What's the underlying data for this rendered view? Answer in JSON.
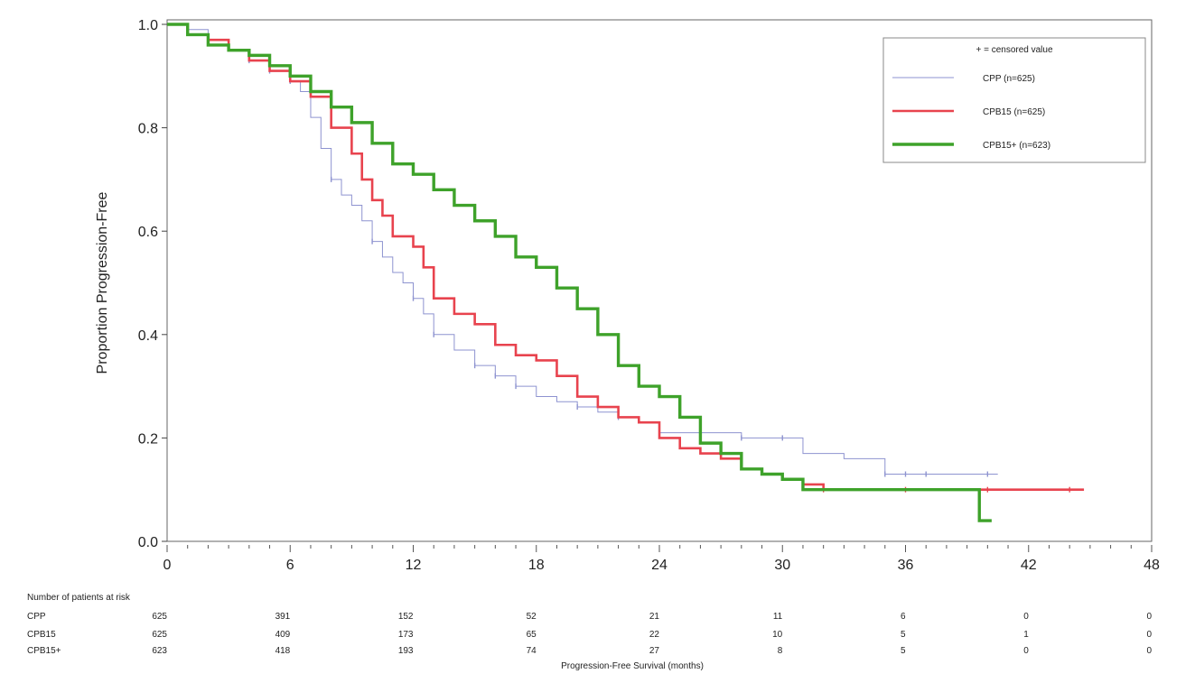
{
  "chart_data": {
    "type": "line",
    "title": "",
    "ylabel": "Proportion Progression-Free",
    "xlabel": "Progression-Free Survival (months)",
    "xlim": [
      0,
      48
    ],
    "ylim": [
      0.0,
      1.0
    ],
    "x_ticks": [
      "0",
      "6",
      "12",
      "18",
      "24",
      "30",
      "36",
      "42",
      "48"
    ],
    "y_ticks": [
      "0.0",
      "0.2",
      "0.4",
      "0.6",
      "0.8",
      "1.0"
    ],
    "legend": {
      "position": "top-right",
      "censored_label": "+ = censored value",
      "entries": [
        "CPP (n=625)",
        "CPB15 (n=625)",
        "CPB15+ (n=623)"
      ]
    },
    "series": [
      {
        "name": "CPP (n=625)",
        "color": "#8e93d0",
        "points": [
          [
            0,
            1.0
          ],
          [
            1,
            0.99
          ],
          [
            2,
            0.97
          ],
          [
            3,
            0.95
          ],
          [
            4,
            0.93
          ],
          [
            5,
            0.91
          ],
          [
            6,
            0.89
          ],
          [
            6.5,
            0.87
          ],
          [
            7,
            0.82
          ],
          [
            7.5,
            0.76
          ],
          [
            8,
            0.7
          ],
          [
            8.5,
            0.67
          ],
          [
            9,
            0.65
          ],
          [
            9.5,
            0.62
          ],
          [
            10,
            0.58
          ],
          [
            10.5,
            0.55
          ],
          [
            11,
            0.52
          ],
          [
            11.5,
            0.5
          ],
          [
            12,
            0.47
          ],
          [
            12.5,
            0.44
          ],
          [
            13,
            0.4
          ],
          [
            14,
            0.37
          ],
          [
            15,
            0.34
          ],
          [
            16,
            0.32
          ],
          [
            17,
            0.3
          ],
          [
            18,
            0.28
          ],
          [
            19,
            0.27
          ],
          [
            20,
            0.26
          ],
          [
            21,
            0.25
          ],
          [
            22,
            0.24
          ],
          [
            23,
            0.23
          ],
          [
            24,
            0.21
          ],
          [
            26,
            0.21
          ],
          [
            28,
            0.2
          ],
          [
            30,
            0.2
          ],
          [
            31,
            0.17
          ],
          [
            33,
            0.16
          ],
          [
            35,
            0.13
          ],
          [
            38,
            0.13
          ],
          [
            40.5,
            0.13
          ]
        ],
        "censored_x": [
          4,
          5,
          6,
          8,
          10,
          12,
          13,
          15,
          16,
          17,
          20,
          22,
          24,
          26,
          28,
          30,
          35,
          36,
          37,
          40
        ]
      },
      {
        "name": "CPB15 (n=625)",
        "color": "#e8434e",
        "points": [
          [
            0,
            1.0
          ],
          [
            1,
            0.98
          ],
          [
            2,
            0.97
          ],
          [
            3,
            0.95
          ],
          [
            4,
            0.93
          ],
          [
            5,
            0.91
          ],
          [
            6,
            0.89
          ],
          [
            7,
            0.86
          ],
          [
            8,
            0.8
          ],
          [
            9,
            0.75
          ],
          [
            9.5,
            0.7
          ],
          [
            10,
            0.66
          ],
          [
            10.5,
            0.63
          ],
          [
            11,
            0.59
          ],
          [
            12,
            0.57
          ],
          [
            12.5,
            0.53
          ],
          [
            13,
            0.47
          ],
          [
            14,
            0.44
          ],
          [
            15,
            0.42
          ],
          [
            16,
            0.38
          ],
          [
            17,
            0.36
          ],
          [
            18,
            0.35
          ],
          [
            19,
            0.32
          ],
          [
            20,
            0.28
          ],
          [
            21,
            0.26
          ],
          [
            22,
            0.24
          ],
          [
            23,
            0.23
          ],
          [
            24,
            0.2
          ],
          [
            25,
            0.18
          ],
          [
            26,
            0.17
          ],
          [
            27,
            0.16
          ],
          [
            28,
            0.14
          ],
          [
            29,
            0.13
          ],
          [
            30,
            0.12
          ],
          [
            31,
            0.11
          ],
          [
            32,
            0.1
          ],
          [
            36,
            0.1
          ],
          [
            40,
            0.1
          ],
          [
            44.7,
            0.1
          ]
        ],
        "censored_x": [
          32,
          36,
          40,
          44
        ]
      },
      {
        "name": "CPB15+ (n=623)",
        "color": "#3ea22a",
        "points": [
          [
            0,
            1.0
          ],
          [
            1,
            0.98
          ],
          [
            2,
            0.96
          ],
          [
            3,
            0.95
          ],
          [
            4,
            0.94
          ],
          [
            5,
            0.92
          ],
          [
            6,
            0.9
          ],
          [
            7,
            0.87
          ],
          [
            8,
            0.84
          ],
          [
            9,
            0.81
          ],
          [
            10,
            0.77
          ],
          [
            11,
            0.73
          ],
          [
            12,
            0.71
          ],
          [
            13,
            0.68
          ],
          [
            14,
            0.65
          ],
          [
            15,
            0.62
          ],
          [
            16,
            0.59
          ],
          [
            17,
            0.55
          ],
          [
            18,
            0.53
          ],
          [
            19,
            0.49
          ],
          [
            20,
            0.45
          ],
          [
            21,
            0.4
          ],
          [
            22,
            0.34
          ],
          [
            23,
            0.3
          ],
          [
            24,
            0.28
          ],
          [
            25,
            0.24
          ],
          [
            26,
            0.19
          ],
          [
            27,
            0.17
          ],
          [
            28,
            0.14
          ],
          [
            29,
            0.13
          ],
          [
            30,
            0.12
          ],
          [
            31,
            0.1
          ],
          [
            35,
            0.1
          ],
          [
            39.5,
            0.1
          ],
          [
            39.6,
            0.04
          ],
          [
            40.2,
            0.04
          ]
        ],
        "censored_x": []
      }
    ],
    "risk_table": {
      "title": "Number of patients at risk",
      "columns_x": [
        0,
        6,
        12,
        18,
        24,
        30,
        36,
        42,
        48
      ],
      "rows": [
        {
          "label": "CPP",
          "values": [
            "625",
            "391",
            "152",
            "52",
            "21",
            "11",
            "6",
            "0",
            "0"
          ]
        },
        {
          "label": "CPB15",
          "values": [
            "625",
            "409",
            "173",
            "65",
            "22",
            "10",
            "5",
            "1",
            "0"
          ]
        },
        {
          "label": "CPB15+",
          "values": [
            "623",
            "418",
            "193",
            "74",
            "27",
            "8",
            "5",
            "0",
            "0"
          ]
        }
      ]
    }
  }
}
